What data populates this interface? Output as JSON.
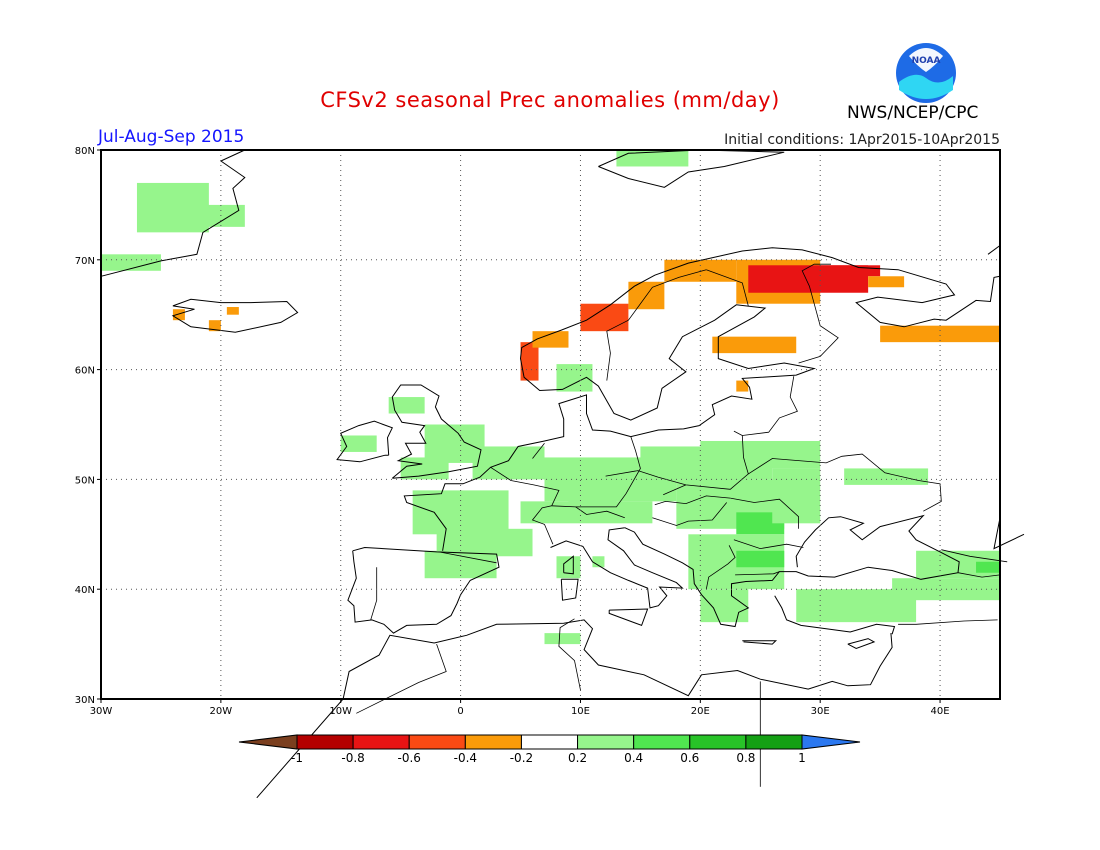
{
  "title": "CFSv2 seasonal Prec anomalies (mm/day)",
  "period": "Jul-Aug-Sep 2015",
  "initial_conditions": "Initial conditions: 1Apr2015-10Apr2015",
  "agency": "NWS/NCEP/CPC",
  "logo_text": "NOAA",
  "map": {
    "lon_range": [
      -30,
      45
    ],
    "lat_range": [
      30,
      80
    ],
    "lon_ticks": [
      "30W",
      "20W",
      "10W",
      "0",
      "10E",
      "20E",
      "30E",
      "40E"
    ],
    "lat_ticks": [
      "80N",
      "70N",
      "60N",
      "50N",
      "40N",
      "30N"
    ],
    "grid": "dotted",
    "anomaly_regions": [
      {
        "name": "greenland-east",
        "level": 0.3,
        "lon": [
          -27,
          -21
        ],
        "lat": [
          72.5,
          77
        ]
      },
      {
        "name": "greenland-south",
        "level": 0.3,
        "lon": [
          -30,
          -25
        ],
        "lat": [
          69,
          70.5
        ]
      },
      {
        "name": "greenland-mid",
        "level": 0.3,
        "lon": [
          -24,
          -18
        ],
        "lat": [
          73,
          75
        ]
      },
      {
        "name": "svalbard",
        "level": 0.3,
        "lon": [
          13,
          19
        ],
        "lat": [
          78.5,
          80
        ]
      },
      {
        "name": "iceland-w",
        "level": -0.3,
        "lon": [
          -24,
          -23
        ],
        "lat": [
          64.5,
          65.5
        ]
      },
      {
        "name": "iceland-sw",
        "level": -0.3,
        "lon": [
          -21,
          -20
        ],
        "lat": [
          63.5,
          64.5
        ]
      },
      {
        "name": "iceland-e",
        "level": -0.3,
        "lon": [
          -19.5,
          -18.5
        ],
        "lat": [
          65,
          65.7
        ]
      },
      {
        "name": "norway-coast-1",
        "level": -0.5,
        "lon": [
          5,
          6.5
        ],
        "lat": [
          59,
          62.5
        ]
      },
      {
        "name": "norway-coast-2",
        "level": -0.3,
        "lon": [
          6,
          9
        ],
        "lat": [
          62,
          63.5
        ]
      },
      {
        "name": "norway-coast-3",
        "level": -0.5,
        "lon": [
          10,
          14
        ],
        "lat": [
          63.5,
          66
        ]
      },
      {
        "name": "norway-coast-4",
        "level": -0.3,
        "lon": [
          14,
          17
        ],
        "lat": [
          65.5,
          68
        ]
      },
      {
        "name": "norway-north",
        "level": -0.3,
        "lon": [
          17,
          23
        ],
        "lat": [
          68,
          70
        ]
      },
      {
        "name": "lapland-orange",
        "level": -0.3,
        "lon": [
          23,
          30
        ],
        "lat": [
          66,
          70
        ]
      },
      {
        "name": "lapland-red",
        "level": -0.7,
        "lon": [
          24,
          34
        ],
        "lat": [
          67,
          69.5
        ]
      },
      {
        "name": "kola-red",
        "level": -0.7,
        "lon": [
          30,
          35
        ],
        "lat": [
          68.5,
          69.5
        ]
      },
      {
        "name": "kola-orange",
        "level": -0.3,
        "lon": [
          34,
          37
        ],
        "lat": [
          67.5,
          68.5
        ]
      },
      {
        "name": "arkhangelsk",
        "level": -0.3,
        "lon": [
          35,
          45
        ],
        "lat": [
          62.5,
          64
        ]
      },
      {
        "name": "finland-south",
        "level": -0.3,
        "lon": [
          21,
          28
        ],
        "lat": [
          61.5,
          63
        ]
      },
      {
        "name": "baltic-dot",
        "level": -0.3,
        "lon": [
          23,
          24
        ],
        "lat": [
          58,
          59
        ]
      },
      {
        "name": "scandinavia-green",
        "level": 0.3,
        "lon": [
          8,
          11
        ],
        "lat": [
          58,
          60.5
        ]
      },
      {
        "name": "uk-north",
        "level": 0.3,
        "lon": [
          -6,
          -3
        ],
        "lat": [
          56,
          57.5
        ]
      },
      {
        "name": "ireland",
        "level": 0.3,
        "lon": [
          -10,
          -7
        ],
        "lat": [
          52.5,
          54
        ]
      },
      {
        "name": "uk-east",
        "level": 0.3,
        "lon": [
          -3,
          2
        ],
        "lat": [
          51.5,
          55
        ]
      },
      {
        "name": "uk-south",
        "level": 0.3,
        "lon": [
          -5,
          -1
        ],
        "lat": [
          50,
          52
        ]
      },
      {
        "name": "benelux",
        "level": 0.3,
        "lon": [
          1,
          7
        ],
        "lat": [
          50,
          53
        ]
      },
      {
        "name": "france-west",
        "level": 0.3,
        "lon": [
          -4,
          4
        ],
        "lat": [
          45,
          49
        ]
      },
      {
        "name": "france-south",
        "level": 0.3,
        "lon": [
          -2,
          6
        ],
        "lat": [
          43,
          45.5
        ]
      },
      {
        "name": "spain-north",
        "level": 0.3,
        "lon": [
          -3,
          3
        ],
        "lat": [
          41,
          43.5
        ]
      },
      {
        "name": "germany",
        "level": 0.3,
        "lon": [
          7,
          18
        ],
        "lat": [
          48,
          52
        ]
      },
      {
        "name": "alps-dark",
        "level": 0.5,
        "lon": [
          9,
          13
        ],
        "lat": [
          47,
          48
        ]
      },
      {
        "name": "alps-green",
        "level": 0.3,
        "lon": [
          5,
          16
        ],
        "lat": [
          46,
          48
        ]
      },
      {
        "name": "italy-dot",
        "level": 0.3,
        "lon": [
          11,
          12
        ],
        "lat": [
          42,
          43
        ]
      },
      {
        "name": "poland",
        "level": 0.3,
        "lon": [
          15,
          26
        ],
        "lat": [
          50,
          53
        ]
      },
      {
        "name": "carpathia-dark",
        "level": 0.5,
        "lon": [
          19,
          24
        ],
        "lat": [
          48,
          50
        ]
      },
      {
        "name": "hungary",
        "level": 0.3,
        "lon": [
          18,
          27
        ],
        "lat": [
          45.5,
          50
        ]
      },
      {
        "name": "romania-dark",
        "level": 0.5,
        "lon": [
          23,
          27
        ],
        "lat": [
          45,
          47
        ]
      },
      {
        "name": "ukraine",
        "level": 0.3,
        "lon": [
          26,
          30
        ],
        "lat": [
          46,
          51
        ]
      },
      {
        "name": "belarus",
        "level": 0.3,
        "lon": [
          20,
          30
        ],
        "lat": [
          51,
          53.5
        ]
      },
      {
        "name": "russia-west",
        "level": 0.3,
        "lon": [
          32,
          39
        ],
        "lat": [
          49.5,
          51
        ]
      },
      {
        "name": "balkans",
        "level": 0.3,
        "lon": [
          19,
          27
        ],
        "lat": [
          40,
          45
        ]
      },
      {
        "name": "bulgaria-dark",
        "level": 0.5,
        "lon": [
          23,
          27
        ],
        "lat": [
          42,
          43.5
        ]
      },
      {
        "name": "greece",
        "level": 0.3,
        "lon": [
          20,
          24
        ],
        "lat": [
          37,
          40
        ]
      },
      {
        "name": "turkey",
        "level": 0.3,
        "lon": [
          28,
          38
        ],
        "lat": [
          37,
          40
        ]
      },
      {
        "name": "turkey-east",
        "level": 0.3,
        "lon": [
          36,
          45
        ],
        "lat": [
          39,
          41
        ]
      },
      {
        "name": "caucasus",
        "level": 0.3,
        "lon": [
          38,
          45
        ],
        "lat": [
          41,
          43.5
        ]
      },
      {
        "name": "caucasus-dark",
        "level": 0.5,
        "lon": [
          43,
          45
        ],
        "lat": [
          41.5,
          42.5
        ]
      },
      {
        "name": "tunisia",
        "level": 0.3,
        "lon": [
          7,
          10
        ],
        "lat": [
          35,
          36
        ]
      },
      {
        "name": "sardinia",
        "level": 0.3,
        "lon": [
          8,
          10
        ],
        "lat": [
          41,
          43
        ]
      }
    ]
  },
  "colorbar": {
    "levels": [
      "-1",
      "-0.8",
      "-0.6",
      "-0.4",
      "-0.2",
      "0.2",
      "0.4",
      "0.6",
      "0.8",
      "1"
    ],
    "colors": [
      "#7b3f1f",
      "#b40000",
      "#e81414",
      "#fa4a14",
      "#fa9b0a",
      "#ffffff",
      "#96f58c",
      "#50e650",
      "#28c328",
      "#14a014",
      "#2b78f0"
    ]
  }
}
